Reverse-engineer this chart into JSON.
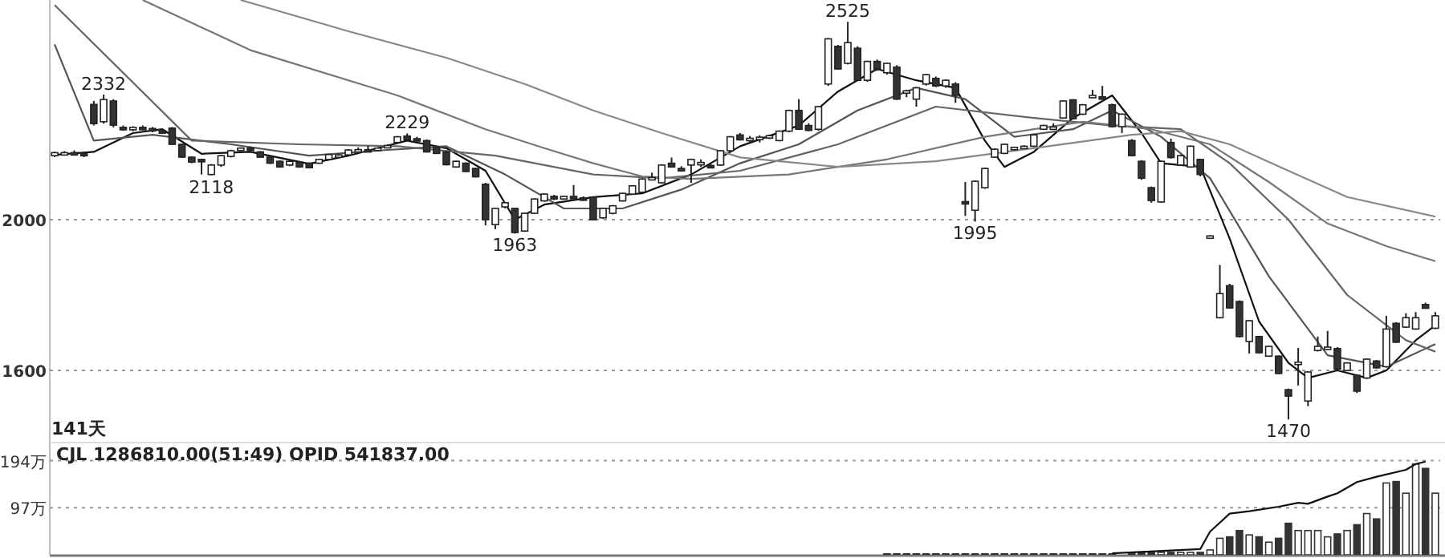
{
  "chart_data": [
    {
      "type": "candlestick",
      "categories": [
        null,
        null,
        null,
        null,
        null,
        null,
        null,
        null,
        null,
        null,
        null,
        null,
        null,
        null,
        null,
        null,
        null,
        null,
        null,
        null,
        null,
        null,
        null,
        null,
        null,
        null,
        null,
        null,
        null,
        null,
        null,
        null,
        null,
        null,
        null,
        null,
        null,
        null,
        null,
        null,
        null,
        null,
        null,
        null,
        null,
        null,
        null,
        null,
        null,
        null,
        null,
        null,
        null,
        null,
        null,
        null,
        null,
        null,
        null,
        null,
        null,
        null,
        null,
        null,
        null,
        null,
        null,
        null,
        null,
        null,
        null,
        null,
        null,
        null,
        null,
        null,
        null,
        null,
        null,
        null,
        null,
        null,
        null,
        null,
        null,
        null,
        null,
        null,
        null,
        null,
        null,
        null,
        null,
        null,
        null,
        null,
        null,
        null,
        null,
        null,
        null,
        null,
        null,
        null,
        null,
        null,
        null,
        null,
        null,
        null,
        null,
        null,
        null,
        null,
        null,
        null,
        null,
        null,
        null,
        null,
        null,
        null,
        null,
        null,
        null,
        null,
        null,
        null,
        null,
        null,
        null,
        null,
        null,
        null,
        null,
        null,
        null,
        null,
        null,
        null,
        null,
        null
      ],
      "ohlc": [
        [
          2170,
          2180,
          2166,
          2178
        ],
        [
          2176,
          2182,
          2172,
          2178
        ],
        [
          2178,
          2184,
          2174,
          2176
        ],
        [
          2176,
          2180,
          2166,
          2170
        ],
        [
          2306,
          2315,
          2250,
          2255
        ],
        [
          2260,
          2332,
          2255,
          2319
        ],
        [
          2315,
          2320,
          2245,
          2251
        ],
        [
          2245,
          2250,
          2236,
          2240
        ],
        [
          2240,
          2248,
          2235,
          2245
        ],
        [
          2245,
          2250,
          2238,
          2242
        ],
        [
          2242,
          2246,
          2232,
          2236
        ],
        [
          2236,
          2240,
          2228,
          2232
        ],
        [
          2243,
          2246,
          2198,
          2200
        ],
        [
          2200,
          2202,
          2164,
          2166
        ],
        [
          2166,
          2168,
          2150,
          2153
        ],
        [
          2160,
          2162,
          2120,
          2158
        ],
        [
          2120,
          2148,
          2118,
          2145
        ],
        [
          2145,
          2172,
          2140,
          2170
        ],
        [
          2168,
          2186,
          2165,
          2183
        ],
        [
          2185,
          2192,
          2182,
          2190
        ],
        [
          2190,
          2194,
          2186,
          2188
        ],
        [
          2180,
          2182,
          2164,
          2166
        ],
        [
          2166,
          2168,
          2148,
          2150
        ],
        [
          2155,
          2158,
          2138,
          2140
        ],
        [
          2145,
          2158,
          2142,
          2155
        ],
        [
          2153,
          2156,
          2138,
          2140
        ],
        [
          2150,
          2152,
          2136,
          2138
        ],
        [
          2150,
          2162,
          2148,
          2160
        ],
        [
          2160,
          2175,
          2158,
          2173
        ],
        [
          2168,
          2176,
          2166,
          2172
        ],
        [
          2172,
          2187,
          2170,
          2185
        ],
        [
          2183,
          2192,
          2180,
          2186
        ],
        [
          2186,
          2196,
          2180,
          2184
        ],
        [
          2184,
          2192,
          2182,
          2190
        ],
        [
          2192,
          2200,
          2190,
          2197
        ],
        [
          2205,
          2222,
          2202,
          2220
        ],
        [
          2222,
          2229,
          2210,
          2212
        ],
        [
          2215,
          2220,
          2208,
          2210
        ],
        [
          2210,
          2213,
          2178,
          2180
        ],
        [
          2193,
          2195,
          2174,
          2176
        ],
        [
          2180,
          2182,
          2144,
          2146
        ],
        [
          2140,
          2157,
          2138,
          2155
        ],
        [
          2150,
          2152,
          2126,
          2128
        ],
        [
          2136,
          2138,
          2112,
          2114
        ],
        [
          2094,
          2098,
          1985,
          2000
        ],
        [
          1987,
          2032,
          1975,
          2030
        ],
        [
          2034,
          2046,
          2030,
          2045
        ],
        [
          2030,
          2032,
          1963,
          1966
        ],
        [
          1970,
          2019,
          1968,
          2017
        ],
        [
          2017,
          2057,
          2015,
          2055
        ],
        [
          2050,
          2070,
          2048,
          2068
        ],
        [
          2062,
          2066,
          2052,
          2055
        ],
        [
          2055,
          2064,
          2053,
          2062
        ],
        [
          2062,
          2092,
          2056,
          2058
        ],
        [
          2058,
          2062,
          2050,
          2055
        ],
        [
          2060,
          2062,
          1998,
          2000
        ],
        [
          2005,
          2032,
          2002,
          2030
        ],
        [
          2017,
          2039,
          2014,
          2037
        ],
        [
          2050,
          2072,
          2048,
          2070
        ],
        [
          2068,
          2092,
          2066,
          2090
        ],
        [
          2073,
          2110,
          2070,
          2108
        ],
        [
          2108,
          2125,
          2104,
          2112
        ],
        [
          2098,
          2147,
          2096,
          2145
        ],
        [
          2150,
          2165,
          2138,
          2140
        ],
        [
          2136,
          2142,
          2128,
          2135
        ],
        [
          2145,
          2162,
          2098,
          2160
        ],
        [
          2148,
          2160,
          2140,
          2152
        ],
        [
          2144,
          2148,
          2136,
          2140
        ],
        [
          2145,
          2185,
          2143,
          2183
        ],
        [
          2183,
          2222,
          2181,
          2220
        ],
        [
          2225,
          2230,
          2210,
          2212
        ],
        [
          2213,
          2222,
          2206,
          2216
        ],
        [
          2216,
          2224,
          2205,
          2219
        ],
        [
          2220,
          2226,
          2214,
          2223
        ],
        [
          2210,
          2237,
          2208,
          2235
        ],
        [
          2235,
          2292,
          2232,
          2290
        ],
        [
          2290,
          2320,
          2238,
          2240
        ],
        [
          2250,
          2256,
          2235,
          2237
        ],
        [
          2240,
          2302,
          2236,
          2300
        ],
        [
          2360,
          2482,
          2355,
          2480
        ],
        [
          2460,
          2464,
          2398,
          2400
        ],
        [
          2415,
          2525,
          2412,
          2470
        ],
        [
          2455,
          2460,
          2368,
          2370
        ],
        [
          2370,
          2422,
          2366,
          2420
        ],
        [
          2420,
          2425,
          2395,
          2400
        ],
        [
          2390,
          2417,
          2385,
          2415
        ],
        [
          2405,
          2410,
          2318,
          2320
        ],
        [
          2340,
          2345,
          2325,
          2342
        ],
        [
          2320,
          2352,
          2300,
          2350
        ],
        [
          2360,
          2387,
          2356,
          2385
        ],
        [
          2375,
          2380,
          2352,
          2355
        ],
        [
          2355,
          2372,
          2350,
          2370
        ],
        [
          2360,
          2365,
          2310,
          2330
        ],
        [
          2048,
          2100,
          2010,
          2045
        ],
        [
          2025,
          2104,
          1995,
          2102
        ],
        [
          2085,
          2138,
          2082,
          2136
        ],
        [
          2166,
          2189,
          2164,
          2187
        ],
        [
          2176,
          2202,
          2174,
          2200
        ],
        [
          2188,
          2194,
          2184,
          2192
        ],
        [
          2192,
          2198,
          2188,
          2195
        ],
        [
          2195,
          2227,
          2193,
          2225
        ],
        [
          2240,
          2252,
          2238,
          2250
        ],
        [
          2244,
          2256,
          2240,
          2246
        ],
        [
          2270,
          2317,
          2268,
          2315
        ],
        [
          2318,
          2320,
          2266,
          2268
        ],
        [
          2280,
          2307,
          2278,
          2305
        ],
        [
          2328,
          2345,
          2325,
          2330
        ],
        [
          2326,
          2355,
          2320,
          2324
        ],
        [
          2305,
          2308,
          2245,
          2247
        ],
        [
          2247,
          2282,
          2230,
          2280
        ],
        [
          2210,
          2214,
          2168,
          2170
        ],
        [
          2155,
          2158,
          2106,
          2110
        ],
        [
          2085,
          2088,
          2045,
          2051
        ],
        [
          2047,
          2157,
          2045,
          2155
        ],
        [
          2205,
          2215,
          2162,
          2165
        ],
        [
          2145,
          2172,
          2143,
          2170
        ],
        [
          2140,
          2197,
          2138,
          2195
        ],
        [
          2160,
          2162,
          2115,
          2120
        ],
        [
          1957,
          1959,
          1955,
          1957
        ],
        [
          1740,
          1880,
          1738,
          1804
        ],
        [
          1825,
          1830,
          1764,
          1766
        ],
        [
          1783,
          1786,
          1688,
          1690
        ],
        [
          1677,
          1734,
          1645,
          1732
        ],
        [
          1690,
          1692,
          1645,
          1647
        ],
        [
          1638,
          1666,
          1636,
          1664
        ],
        [
          1638,
          1640,
          1590,
          1592
        ],
        [
          1549,
          1552,
          1470,
          1532
        ],
        [
          1620,
          1660,
          1560,
          1622
        ],
        [
          1519,
          1598,
          1505,
          1596
        ],
        [
          1653,
          1690,
          1650,
          1664
        ],
        [
          1658,
          1705,
          1655,
          1662
        ],
        [
          1658,
          1662,
          1602,
          1604
        ],
        [
          1600,
          1622,
          1598,
          1620
        ],
        [
          1587,
          1590,
          1540,
          1545
        ],
        [
          1580,
          1632,
          1578,
          1630
        ],
        [
          1625,
          1628,
          1605,
          1607
        ],
        [
          1610,
          1745,
          1608,
          1710
        ],
        [
          1725,
          1728,
          1673,
          1675
        ],
        [
          1715,
          1752,
          1713,
          1740
        ],
        [
          1710,
          1755,
          1708,
          1740
        ],
        [
          1775,
          1780,
          1765,
          1765
        ],
        [
          1712,
          1755,
          1710,
          1745
        ]
      ],
      "series": [
        {
          "type": "line",
          "color": "#111111",
          "values": [
            2172,
            null,
            null,
            null,
            2180,
            null,
            null,
            null,
            2230,
            null,
            null,
            2240,
            null,
            null,
            null,
            2175,
            null,
            null,
            null,
            null,
            2180,
            null,
            null,
            null,
            null,
            null,
            2148,
            null,
            null,
            null,
            2170,
            null,
            null,
            null,
            null,
            null,
            2210,
            null,
            null,
            null,
            2190,
            null,
            null,
            null,
            2130,
            null,
            null,
            2000,
            null,
            null,
            2040,
            null,
            null,
            null,
            null,
            2060,
            null,
            null,
            null,
            null,
            2070,
            null,
            null,
            null,
            null,
            2120,
            null,
            null,
            null,
            null,
            2195,
            null,
            null,
            null,
            null,
            null,
            2250,
            null,
            null,
            null,
            2340,
            null,
            null,
            null,
            2400,
            null,
            null,
            null,
            2370,
            null,
            null,
            null,
            2350,
            null,
            null,
            2210,
            null,
            2140,
            null,
            null,
            2180,
            null,
            null,
            null,
            2270,
            null,
            null,
            null,
            2330,
            null,
            null,
            2230,
            null,
            2150,
            null,
            null,
            null,
            2140,
            null,
            null,
            1950,
            null,
            null,
            1730,
            null,
            null,
            1620,
            null,
            1580,
            null,
            null,
            1600,
            null,
            null,
            1580,
            null,
            1600,
            null,
            null,
            1680,
            null,
            1720
          ]
        },
        {
          "type": "line",
          "color": "#555555",
          "values": [
            2465,
            null,
            null,
            null,
            2210,
            null,
            null,
            null,
            null,
            null,
            2225,
            null,
            null,
            null,
            null,
            null,
            null,
            null,
            2200,
            null,
            null,
            null,
            null,
            null,
            null,
            null,
            2170,
            null,
            null,
            null,
            null,
            null,
            null,
            null,
            2185,
            null,
            null,
            null,
            null,
            null,
            2195,
            null,
            null,
            null,
            null,
            null,
            2120,
            null,
            null,
            null,
            null,
            null,
            2030,
            null,
            null,
            null,
            null,
            null,
            2030,
            null,
            null,
            null,
            null,
            null,
            2080,
            null,
            null,
            null,
            null,
            null,
            2150,
            null,
            null,
            null,
            null,
            null,
            2200,
            null,
            null,
            null,
            null,
            null,
            2290,
            null,
            null,
            null,
            null,
            null,
            2350,
            null,
            null,
            null,
            null,
            2320,
            null,
            null,
            null,
            null,
            2220,
            null,
            null,
            null,
            null,
            null,
            2240,
            null,
            null,
            null,
            2290,
            null,
            null,
            null,
            null,
            2220,
            null,
            null,
            null,
            null,
            2110,
            null,
            null,
            null,
            null,
            null,
            1850,
            null,
            null,
            null,
            null,
            null,
            1640,
            null,
            null,
            null,
            null,
            null,
            1610,
            null,
            null,
            null,
            null,
            1670
          ]
        },
        {
          "type": "line",
          "color": "#666666",
          "values": [
            2570,
            null,
            null,
            null,
            null,
            null,
            null,
            null,
            null,
            null,
            null,
            null,
            null,
            null,
            2210,
            null,
            null,
            null,
            null,
            null,
            null,
            null,
            null,
            null,
            null,
            2200,
            null,
            null,
            null,
            null,
            null,
            null,
            null,
            null,
            null,
            2195,
            null,
            null,
            null,
            null,
            null,
            null,
            null,
            null,
            null,
            2170,
            null,
            null,
            null,
            null,
            null,
            null,
            null,
            null,
            null,
            2120,
            null,
            null,
            null,
            null,
            null,
            null,
            2110,
            null,
            null,
            null,
            null,
            null,
            null,
            null,
            2130,
            null,
            null,
            null,
            null,
            null,
            null,
            null,
            null,
            null,
            2200,
            null,
            null,
            null,
            null,
            null,
            null,
            null,
            null,
            null,
            2300,
            null,
            null,
            null,
            null,
            null,
            null,
            null,
            null,
            null,
            2270,
            null,
            null,
            null,
            null,
            null,
            null,
            null,
            2250,
            null,
            null,
            null,
            null,
            null,
            null,
            2240,
            null,
            null,
            null,
            null,
            2150,
            null,
            null,
            null,
            null,
            null,
            2000,
            null,
            null,
            null,
            null,
            null,
            1800,
            null,
            null,
            null,
            null,
            null,
            1680,
            null,
            null,
            1650
          ]
        },
        {
          "type": "line",
          "color": "#777777",
          "values": [
            null,
            null,
            null,
            null,
            null,
            null,
            null,
            null,
            null,
            2583,
            null,
            null,
            null,
            null,
            null,
            null,
            null,
            null,
            null,
            null,
            2450,
            null,
            null,
            null,
            null,
            null,
            null,
            null,
            null,
            null,
            null,
            null,
            null,
            null,
            null,
            2330,
            null,
            null,
            null,
            null,
            null,
            null,
            null,
            null,
            2240,
            null,
            null,
            null,
            null,
            null,
            2190,
            null,
            null,
            null,
            null,
            2150,
            null,
            null,
            null,
            null,
            2115,
            null,
            null,
            null,
            null,
            2108,
            null,
            null,
            null,
            null,
            null,
            null,
            null,
            null,
            null,
            2120,
            null,
            null,
            null,
            null,
            null,
            null,
            null,
            null,
            null,
            2160,
            null,
            null,
            null,
            null,
            null,
            null,
            null,
            null,
            null,
            2220,
            null,
            null,
            null,
            null,
            null,
            null,
            null,
            null,
            null,
            2260,
            null,
            null,
            null,
            null,
            null,
            null,
            2240,
            null,
            null,
            null,
            null,
            null,
            2200,
            null,
            null,
            null,
            null,
            null,
            2100,
            null,
            null,
            null,
            null,
            null,
            1990,
            null,
            null,
            null,
            null,
            null,
            1930,
            null,
            null,
            null,
            null,
            1890
          ]
        },
        {
          "type": "line",
          "color": "#888888",
          "values": [
            null,
            null,
            null,
            null,
            null,
            null,
            null,
            null,
            null,
            null,
            null,
            null,
            null,
            null,
            null,
            null,
            null,
            null,
            null,
            2583,
            null,
            null,
            null,
            null,
            null,
            null,
            null,
            null,
            null,
            null,
            2500,
            null,
            null,
            null,
            null,
            null,
            null,
            null,
            null,
            null,
            2430,
            null,
            null,
            null,
            null,
            null,
            null,
            null,
            2360,
            null,
            null,
            null,
            null,
            null,
            null,
            2290,
            null,
            null,
            null,
            null,
            null,
            null,
            2230,
            null,
            null,
            null,
            null,
            null,
            null,
            null,
            2165,
            null,
            null,
            null,
            null,
            null,
            null,
            null,
            null,
            null,
            2140,
            null,
            null,
            null,
            null,
            null,
            null,
            null,
            null,
            null,
            2155,
            null,
            null,
            null,
            null,
            null,
            null,
            null,
            null,
            null,
            2190,
            null,
            null,
            null,
            null,
            null,
            null,
            null,
            null,
            null,
            2225,
            null,
            null,
            null,
            null,
            2235,
            null,
            null,
            null,
            null,
            2200,
            null,
            null,
            null,
            null,
            null,
            2130,
            null,
            null,
            null,
            null,
            null,
            2060,
            null,
            null,
            null,
            null,
            null,
            null,
            null,
            null,
            2008
          ]
        }
      ],
      "ylim": [
        1413,
        2583
      ],
      "yticks": [
        1600,
        2000
      ],
      "grid": "y",
      "annotations": [
        {
          "text": "2332",
          "y": 2332
        },
        {
          "text": "2118",
          "y": 2118
        },
        {
          "text": "2229",
          "y": 2229
        },
        {
          "text": "1963",
          "y": 1963
        },
        {
          "text": "2525",
          "y": 2525
        },
        {
          "text": "1995",
          "y": 1995
        },
        {
          "text": "1470",
          "y": 1470
        },
        "141天"
      ]
    },
    {
      "type": "bar",
      "title": "CJL 1286810.00(51:49) OPID 541837.00",
      "categories": [
        null,
        null,
        null,
        null,
        null,
        null,
        null,
        null,
        null,
        null,
        null,
        null,
        null,
        null,
        null,
        null,
        null,
        null,
        null,
        null,
        null,
        null,
        null,
        null,
        null,
        null,
        null,
        null,
        null,
        null,
        null,
        null,
        null,
        null,
        null,
        null,
        null,
        null,
        null,
        null,
        null,
        null,
        null,
        null,
        null,
        null,
        null,
        null,
        null,
        null,
        null,
        null,
        null,
        null,
        null,
        null,
        null,
        null,
        null,
        null,
        null,
        null,
        null,
        null,
        null,
        null,
        null,
        null,
        null,
        null,
        null,
        null,
        null,
        null,
        null,
        null,
        null,
        null,
        null,
        null,
        null,
        null,
        null,
        null,
        null,
        null,
        null,
        null,
        null,
        null,
        null,
        null,
        null,
        null,
        null,
        null,
        null,
        null,
        null,
        null,
        null,
        null,
        null,
        null,
        null,
        null,
        null,
        null,
        null,
        null,
        null,
        null,
        null,
        null,
        null,
        null,
        null,
        null,
        null,
        null,
        null,
        null,
        null,
        null,
        null,
        null,
        null,
        null,
        null,
        null,
        null,
        null,
        null,
        null,
        null,
        null,
        null,
        null,
        null,
        null,
        null,
        null
      ],
      "series": [
        {
          "color": "#333333",
          "values": [
            null,
            null,
            null,
            null,
            null,
            null,
            null,
            null,
            null,
            null,
            null,
            null,
            null,
            null,
            null,
            null,
            null,
            null,
            null,
            null,
            null,
            null,
            null,
            null,
            null,
            null,
            null,
            null,
            null,
            null,
            null,
            null,
            null,
            null,
            null,
            null,
            null,
            null,
            null,
            null,
            null,
            null,
            null,
            null,
            null,
            null,
            null,
            null,
            null,
            null,
            null,
            null,
            null,
            null,
            null,
            null,
            null,
            null,
            null,
            null,
            null,
            null,
            null,
            null,
            null,
            null,
            null,
            null,
            null,
            null,
            null,
            null,
            null,
            null,
            null,
            null,
            null,
            null,
            null,
            null,
            null,
            null,
            null,
            null,
            null,
            2,
            2,
            2,
            2,
            2,
            2,
            2,
            2,
            2,
            2,
            2,
            2,
            2,
            2,
            2,
            2,
            2,
            2,
            2,
            2,
            2,
            2,
            2,
            2,
            null,
            5,
            5,
            5,
            5,
            5,
            5,
            5,
            5,
            10,
            34,
            37,
            50,
            41,
            37,
            26,
            34,
            65,
            50,
            50,
            50,
            37,
            43,
            50,
            62,
            85,
            74,
            148,
            151,
            127,
            187,
            178,
            127
          ]
        },
        {
          "type": "line",
          "color": "#111111",
          "values": [
            null,
            null,
            null,
            null,
            null,
            null,
            null,
            null,
            null,
            null,
            null,
            null,
            null,
            null,
            null,
            null,
            null,
            null,
            null,
            null,
            null,
            null,
            null,
            null,
            null,
            null,
            null,
            null,
            null,
            null,
            null,
            null,
            null,
            null,
            null,
            null,
            null,
            null,
            null,
            null,
            null,
            null,
            null,
            null,
            null,
            null,
            null,
            null,
            null,
            null,
            null,
            null,
            null,
            null,
            null,
            null,
            null,
            null,
            null,
            null,
            null,
            null,
            null,
            null,
            null,
            null,
            null,
            null,
            null,
            null,
            null,
            null,
            null,
            null,
            null,
            null,
            null,
            null,
            null,
            null,
            null,
            null,
            null,
            null,
            null,
            null,
            null,
            null,
            null,
            null,
            null,
            null,
            null,
            null,
            null,
            null,
            null,
            null,
            null,
            null,
            null,
            null,
            null,
            null,
            null,
            null,
            null,
            null,
            3,
            null,
            null,
            null,
            null,
            null,
            null,
            null,
            null,
            12,
            48,
            null,
            85,
            null,
            90,
            null,
            null,
            99,
            null,
            107,
            105,
            null,
            120,
            127,
            null,
            150,
            null,
            161,
            null,
            null,
            175,
            187,
            192,
            null
          ]
        }
      ],
      "ylim": [
        0,
        228
      ],
      "yticks": [
        {
          "value": 97,
          "label": "97万"
        },
        {
          "value": 194,
          "label": "194万"
        }
      ],
      "grid": "y"
    }
  ]
}
